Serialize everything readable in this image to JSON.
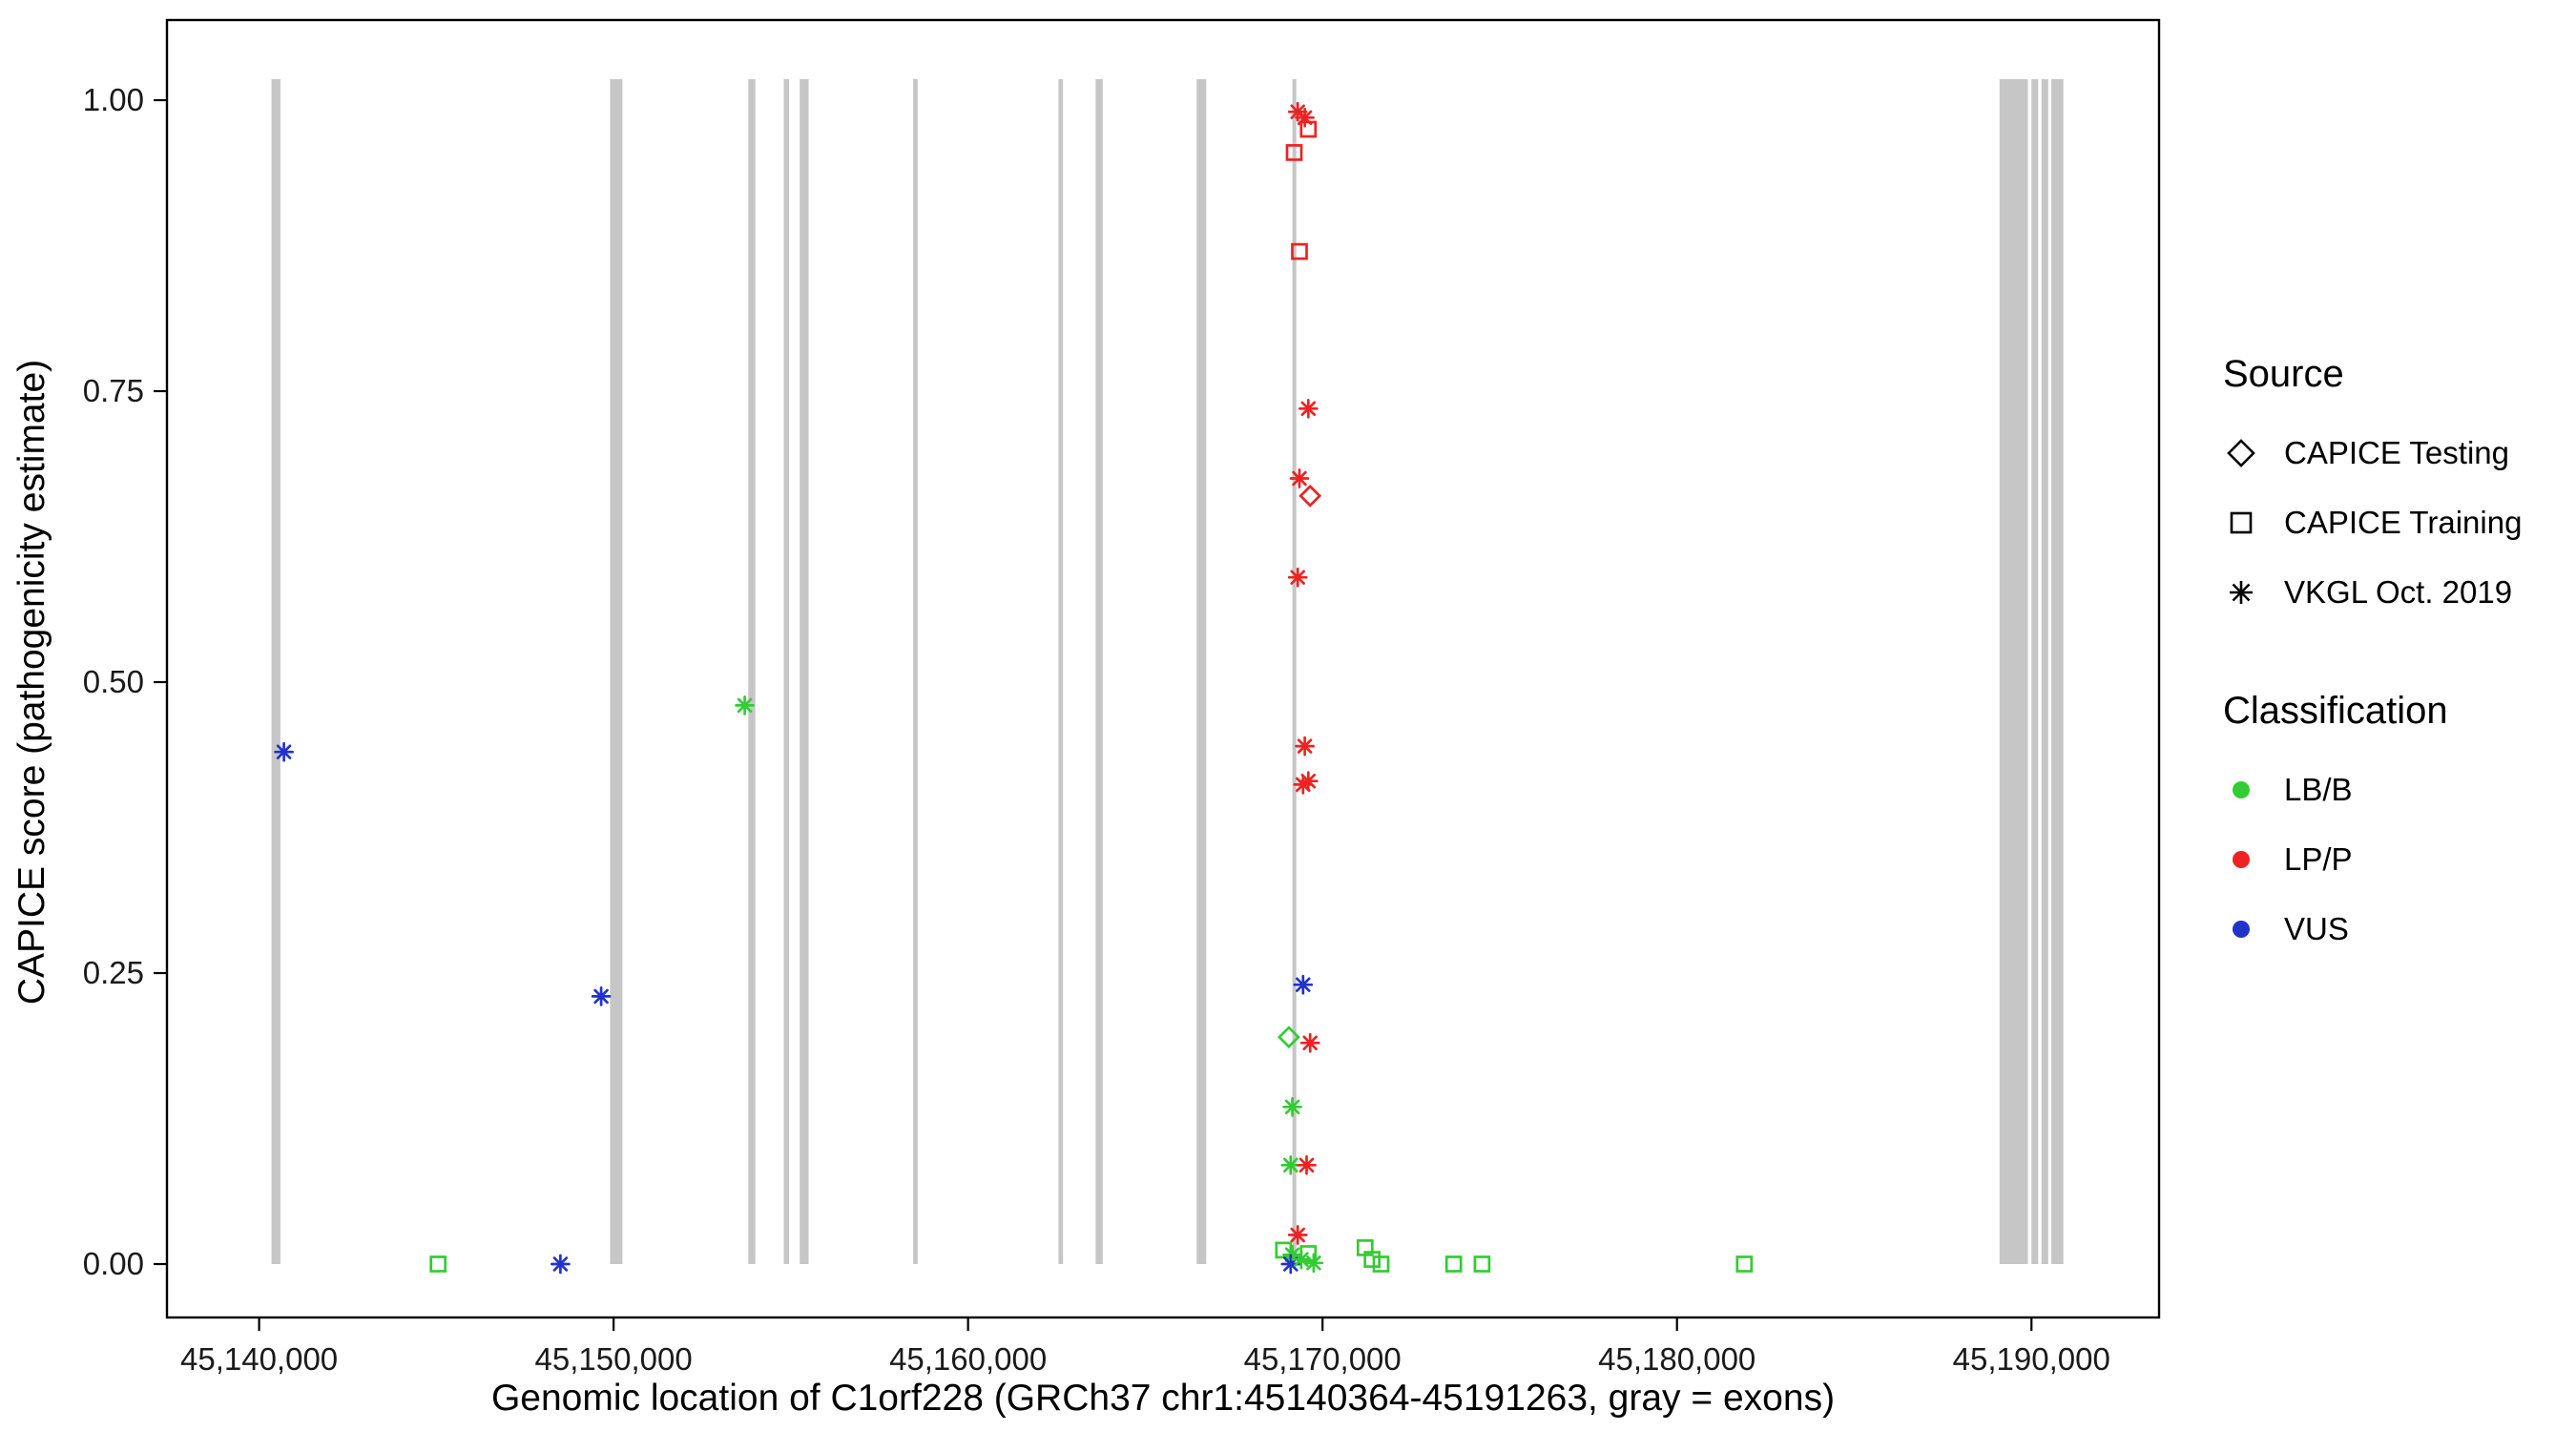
{
  "legend": {
    "source": {
      "title": "Source",
      "items": [
        {
          "label": "CAPICE Testing",
          "shape": "diamond"
        },
        {
          "label": "CAPICE Training",
          "shape": "square"
        },
        {
          "label": "VKGL Oct. 2019",
          "shape": "asterisk"
        }
      ]
    },
    "classification": {
      "title": "Classification",
      "items": [
        {
          "label": "LB/B",
          "color": "#33cc33"
        },
        {
          "label": "LP/P",
          "color": "#ee2222"
        },
        {
          "label": "VUS",
          "color": "#2233cc"
        }
      ]
    }
  },
  "chart_data": {
    "type": "scatter",
    "title": "",
    "xlabel": "Genomic location of C1orf228 (GRCh37 chr1:45140364-45191263, gray = exons)",
    "ylabel": "CAPICE score (pathogenicity estimate)",
    "x_domain": [
      45137400,
      45193600
    ],
    "y_domain": [
      0,
      1
    ],
    "x_ticks": [
      {
        "value": 45140000,
        "label": "45,140,000"
      },
      {
        "value": 45150000,
        "label": "45,150,000"
      },
      {
        "value": 45160000,
        "label": "45,160,000"
      },
      {
        "value": 45170000,
        "label": "45,170,000"
      },
      {
        "value": 45180000,
        "label": "45,180,000"
      },
      {
        "value": 45190000,
        "label": "45,190,000"
      }
    ],
    "y_ticks": [
      {
        "value": 0.0,
        "label": "0.00"
      },
      {
        "value": 0.25,
        "label": "0.25"
      },
      {
        "value": 0.5,
        "label": "0.50"
      },
      {
        "value": 0.75,
        "label": "0.75"
      },
      {
        "value": 1.0,
        "label": "1.00"
      }
    ],
    "colors": {
      "LB/B": "#33cc33",
      "LP/P": "#ee2222",
      "VUS": "#2233cc",
      "exon": "#c6c6c6"
    },
    "shape_by_source": {
      "CAPICE Testing": "diamond",
      "CAPICE Training": "square",
      "VKGL Oct. 2019": "asterisk"
    },
    "exons": [
      [
        45140350,
        45140600
      ],
      [
        45149900,
        45150250
      ],
      [
        45153800,
        45154000
      ],
      [
        45154800,
        45154950
      ],
      [
        45155250,
        45155500
      ],
      [
        45158450,
        45158580
      ],
      [
        45162550,
        45162680
      ],
      [
        45163600,
        45163800
      ],
      [
        45166450,
        45166720
      ],
      [
        45169150,
        45169260
      ],
      [
        45189100,
        45189900
      ],
      [
        45190000,
        45190190
      ],
      [
        45190280,
        45190470
      ],
      [
        45190560,
        45190900
      ]
    ],
    "points": [
      {
        "x": 45140700,
        "y": 0.44,
        "source": "VKGL Oct. 2019",
        "classification": "VUS"
      },
      {
        "x": 45145050,
        "y": 0.0,
        "source": "CAPICE Training",
        "classification": "LB/B"
      },
      {
        "x": 45148500,
        "y": 0.0,
        "source": "VKGL Oct. 2019",
        "classification": "VUS"
      },
      {
        "x": 45149650,
        "y": 0.23,
        "source": "VKGL Oct. 2019",
        "classification": "VUS"
      },
      {
        "x": 45153700,
        "y": 0.48,
        "source": "VKGL Oct. 2019",
        "classification": "LB/B"
      },
      {
        "x": 45169300,
        "y": 0.99,
        "source": "VKGL Oct. 2019",
        "classification": "LP/P"
      },
      {
        "x": 45169500,
        "y": 0.985,
        "source": "VKGL Oct. 2019",
        "classification": "LP/P"
      },
      {
        "x": 45169600,
        "y": 0.975,
        "source": "CAPICE Training",
        "classification": "LP/P"
      },
      {
        "x": 45169200,
        "y": 0.955,
        "source": "CAPICE Training",
        "classification": "LP/P"
      },
      {
        "x": 45169350,
        "y": 0.87,
        "source": "CAPICE Training",
        "classification": "LP/P"
      },
      {
        "x": 45169600,
        "y": 0.735,
        "source": "VKGL Oct. 2019",
        "classification": "LP/P"
      },
      {
        "x": 45169350,
        "y": 0.675,
        "source": "VKGL Oct. 2019",
        "classification": "LP/P"
      },
      {
        "x": 45169650,
        "y": 0.66,
        "source": "CAPICE Testing",
        "classification": "LP/P"
      },
      {
        "x": 45169300,
        "y": 0.59,
        "source": "VKGL Oct. 2019",
        "classification": "LP/P"
      },
      {
        "x": 45169500,
        "y": 0.445,
        "source": "VKGL Oct. 2019",
        "classification": "LP/P"
      },
      {
        "x": 45169450,
        "y": 0.412,
        "source": "VKGL Oct. 2019",
        "classification": "LP/P"
      },
      {
        "x": 45169600,
        "y": 0.415,
        "source": "VKGL Oct. 2019",
        "classification": "LP/P"
      },
      {
        "x": 45169450,
        "y": 0.24,
        "source": "VKGL Oct. 2019",
        "classification": "VUS"
      },
      {
        "x": 45169050,
        "y": 0.195,
        "source": "CAPICE Testing",
        "classification": "LB/B"
      },
      {
        "x": 45169650,
        "y": 0.19,
        "source": "VKGL Oct. 2019",
        "classification": "LP/P"
      },
      {
        "x": 45169150,
        "y": 0.135,
        "source": "VKGL Oct. 2019",
        "classification": "LB/B"
      },
      {
        "x": 45169100,
        "y": 0.085,
        "source": "VKGL Oct. 2019",
        "classification": "LB/B"
      },
      {
        "x": 45169550,
        "y": 0.085,
        "source": "VKGL Oct. 2019",
        "classification": "LP/P"
      },
      {
        "x": 45169300,
        "y": 0.025,
        "source": "VKGL Oct. 2019",
        "classification": "LP/P"
      },
      {
        "x": 45168900,
        "y": 0.012,
        "source": "CAPICE Training",
        "classification": "LB/B"
      },
      {
        "x": 45169150,
        "y": 0.008,
        "source": "VKGL Oct. 2019",
        "classification": "LB/B"
      },
      {
        "x": 45169100,
        "y": 0.0,
        "source": "VKGL Oct. 2019",
        "classification": "VUS"
      },
      {
        "x": 45169400,
        "y": 0.004,
        "source": "VKGL Oct. 2019",
        "classification": "LB/B"
      },
      {
        "x": 45169600,
        "y": 0.009,
        "source": "CAPICE Training",
        "classification": "LB/B"
      },
      {
        "x": 45169750,
        "y": 0.001,
        "source": "VKGL Oct. 2019",
        "classification": "LB/B"
      },
      {
        "x": 45171200,
        "y": 0.014,
        "source": "CAPICE Training",
        "classification": "LB/B"
      },
      {
        "x": 45171400,
        "y": 0.004,
        "source": "CAPICE Training",
        "classification": "LB/B"
      },
      {
        "x": 45171650,
        "y": 0.0,
        "source": "CAPICE Training",
        "classification": "LB/B"
      },
      {
        "x": 45173700,
        "y": 0.0,
        "source": "CAPICE Training",
        "classification": "LB/B"
      },
      {
        "x": 45174500,
        "y": 0.0,
        "source": "CAPICE Training",
        "classification": "LB/B"
      },
      {
        "x": 45181900,
        "y": 0.0,
        "source": "CAPICE Training",
        "classification": "LB/B"
      }
    ]
  }
}
